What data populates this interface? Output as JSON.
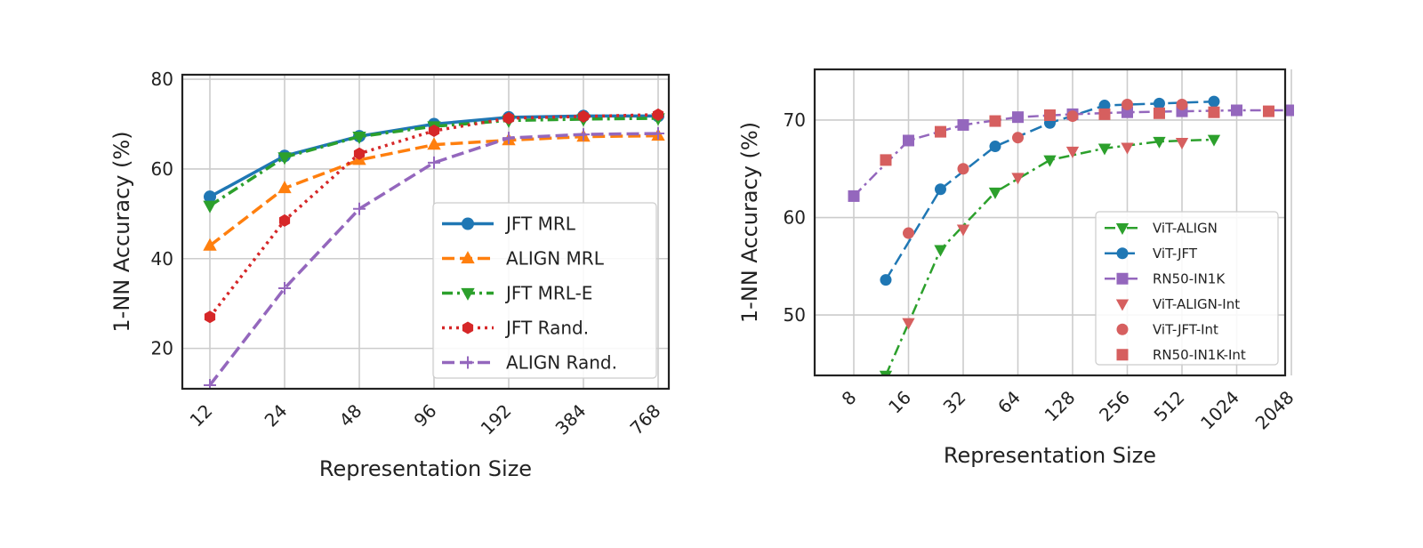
{
  "chart_data": [
    {
      "type": "line",
      "title": "",
      "xlabel": "Representation Size",
      "ylabel": "1-NN Accuracy (%)",
      "xscale": "log2",
      "x": [
        12,
        24,
        48,
        96,
        192,
        384,
        768
      ],
      "xticks": [
        "12",
        "24",
        "48",
        "96",
        "192",
        "384",
        "768"
      ],
      "yticks": [
        20,
        40,
        60,
        80
      ],
      "ylim": [
        11,
        81
      ],
      "grid": true,
      "legend_position": "lower-right",
      "series": [
        {
          "name": "JFT MRL",
          "color": "#1f77b4",
          "marker": "circle",
          "linestyle": "solid",
          "values": [
            53.8,
            62.9,
            67.3,
            70.0,
            71.5,
            71.8,
            71.8
          ]
        },
        {
          "name": "ALIGN MRL",
          "color": "#ff7f0e",
          "marker": "triangle-up",
          "linestyle": "dashed",
          "values": [
            42.9,
            55.7,
            62.0,
            65.4,
            66.4,
            67.2,
            67.4
          ]
        },
        {
          "name": "JFT MRL-E",
          "color": "#2ca02c",
          "marker": "triangle-down",
          "linestyle": "dashdot",
          "values": [
            51.8,
            62.6,
            67.2,
            69.5,
            70.8,
            71.1,
            71.3
          ]
        },
        {
          "name": "JFT Rand.",
          "color": "#d62728",
          "marker": "hexagon",
          "linestyle": "dotted",
          "values": [
            27.0,
            48.5,
            63.4,
            68.5,
            71.3,
            71.7,
            72.1
          ]
        },
        {
          "name": "ALIGN Rand.",
          "color": "#9467bd",
          "marker": "plus",
          "linestyle": "dashed",
          "values": [
            11.8,
            33.4,
            51.1,
            61.4,
            66.9,
            67.7,
            67.9
          ]
        }
      ]
    },
    {
      "type": "line",
      "title": "",
      "xlabel": "Representation Size",
      "ylabel": "1-NN Accuracy (%)",
      "xscale": "log2",
      "xticks": [
        "8",
        "16",
        "32",
        "64",
        "128",
        "256",
        "512",
        "1024",
        "2048"
      ],
      "xtick_values": [
        8,
        16,
        32,
        64,
        128,
        256,
        512,
        1024,
        2048
      ],
      "yticks": [
        50,
        60,
        70
      ],
      "ylim": [
        43.8,
        75.2
      ],
      "grid": true,
      "legend_position": "lower-right",
      "series": [
        {
          "name": "ViT-ALIGN",
          "color": "#2ca02c",
          "marker": "triangle-down",
          "linestyle": "dashdot",
          "x": [
            12,
            24,
            48,
            96,
            192,
            384,
            768
          ],
          "values": [
            43.8,
            56.7,
            62.6,
            65.9,
            67.1,
            67.8,
            68.0
          ]
        },
        {
          "name": "ViT-JFT",
          "color": "#1f77b4",
          "marker": "circle",
          "linestyle": "dashed",
          "x": [
            12,
            24,
            48,
            96,
            192,
            384,
            768
          ],
          "values": [
            53.6,
            62.9,
            67.3,
            69.7,
            71.5,
            71.7,
            71.9
          ]
        },
        {
          "name": "RN50-IN1K",
          "color": "#9467bd",
          "marker": "square",
          "linestyle": "dashdot",
          "x": [
            8,
            16,
            32,
            64,
            128,
            256,
            512,
            1024,
            2048
          ],
          "values": [
            62.2,
            67.9,
            69.5,
            70.3,
            70.6,
            70.8,
            70.9,
            71.0,
            71.0
          ]
        },
        {
          "name": "ViT-ALIGN-Int",
          "color": "#d65f5f",
          "marker": "triangle-down",
          "linestyle": "none",
          "x": [
            16,
            32,
            64,
            128,
            256,
            512
          ],
          "values": [
            49.2,
            58.8,
            64.1,
            66.8,
            67.2,
            67.7
          ]
        },
        {
          "name": "ViT-JFT-Int",
          "color": "#d65f5f",
          "marker": "circle",
          "linestyle": "none",
          "x": [
            16,
            32,
            64,
            128,
            256,
            512
          ],
          "values": [
            58.4,
            65.0,
            68.2,
            70.4,
            71.6,
            71.6
          ]
        },
        {
          "name": "RN50-IN1K-Int",
          "color": "#d65f5f",
          "marker": "square",
          "linestyle": "none",
          "x": [
            12,
            24,
            48,
            96,
            192,
            384,
            768,
            1536
          ],
          "values": [
            65.9,
            68.8,
            69.9,
            70.5,
            70.6,
            70.7,
            70.8,
            70.9
          ]
        }
      ]
    }
  ]
}
